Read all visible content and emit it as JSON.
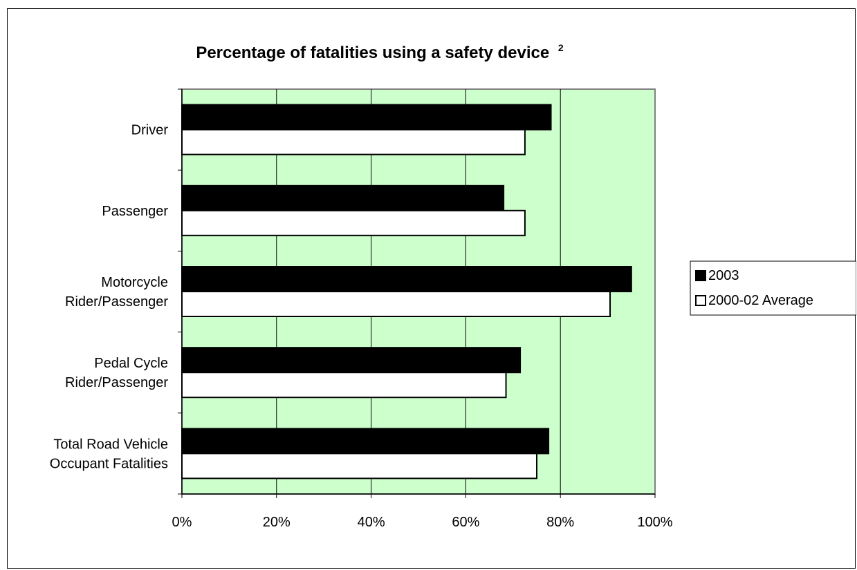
{
  "chart_data": {
    "type": "bar",
    "orientation": "horizontal",
    "title": "Percentage of fatalities using a safety device",
    "title_superscript": "2",
    "categories": [
      [
        "Driver"
      ],
      [
        "Passenger"
      ],
      [
        "Motorcycle",
        "Rider/Passenger"
      ],
      [
        "Pedal Cycle",
        "Rider/Passenger"
      ],
      [
        "Total Road Vehicle",
        "Occupant Fatalities"
      ]
    ],
    "series": [
      {
        "name": "2003",
        "values": [
          78,
          68,
          95,
          71.5,
          77.5
        ],
        "color": "#000000"
      },
      {
        "name": "2000-02 Average",
        "values": [
          72.5,
          72.5,
          90.5,
          68.5,
          75
        ],
        "color": "#ffffff"
      }
    ],
    "xlim": [
      0,
      100
    ],
    "x_ticks": [
      "0%",
      "20%",
      "40%",
      "60%",
      "80%",
      "100%"
    ],
    "x_tick_values": [
      0,
      20,
      40,
      60,
      80,
      100
    ],
    "plot_background": "#ccffcc",
    "gridlines": "vertical",
    "legend_position": "right"
  }
}
